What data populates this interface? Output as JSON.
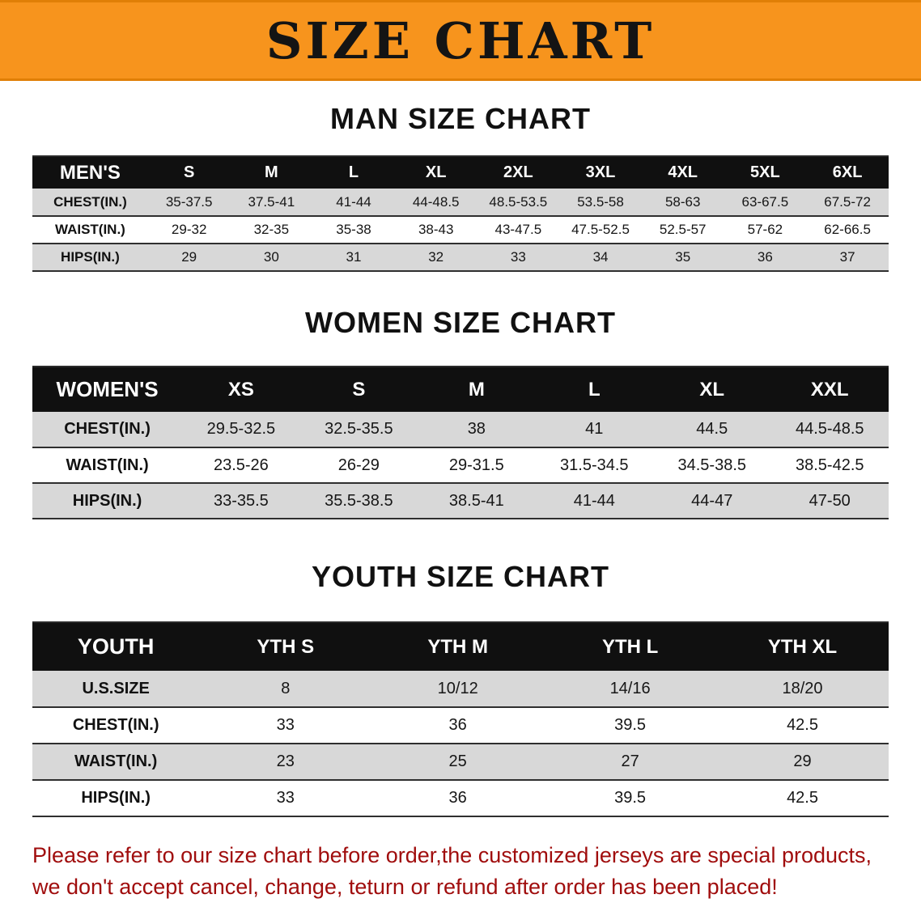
{
  "banner": {
    "title": "SIZE CHART"
  },
  "colors": {
    "accent_orange": "#f7941d",
    "header_black": "#101010",
    "row_gray": "#d8d8d8",
    "footer_red": "#a00d0d"
  },
  "sections": [
    {
      "heading": "MAN SIZE CHART",
      "table": {
        "header": [
          "MEN'S",
          "S",
          "M",
          "L",
          "XL",
          "2XL",
          "3XL",
          "4XL",
          "5XL",
          "6XL"
        ],
        "rows": [
          [
            "CHEST(IN.)",
            "35-37.5",
            "37.5-41",
            "41-44",
            "44-48.5",
            "48.5-53.5",
            "53.5-58",
            "58-63",
            "63-67.5",
            "67.5-72"
          ],
          [
            "WAIST(IN.)",
            "29-32",
            "32-35",
            "35-38",
            "38-43",
            "43-47.5",
            "47.5-52.5",
            "52.5-57",
            "57-62",
            "62-66.5"
          ],
          [
            "HIPS(IN.)",
            "29",
            "30",
            "31",
            "32",
            "33",
            "34",
            "35",
            "36",
            "37"
          ]
        ]
      }
    },
    {
      "heading": "WOMEN SIZE CHART",
      "table": {
        "header": [
          "WOMEN'S",
          "XS",
          "S",
          "M",
          "L",
          "XL",
          "XXL"
        ],
        "rows": [
          [
            "CHEST(IN.)",
            "29.5-32.5",
            "32.5-35.5",
            "38",
            "41",
            "44.5",
            "44.5-48.5"
          ],
          [
            "WAIST(IN.)",
            "23.5-26",
            "26-29",
            "29-31.5",
            "31.5-34.5",
            "34.5-38.5",
            "38.5-42.5"
          ],
          [
            "HIPS(IN.)",
            "33-35.5",
            "35.5-38.5",
            "38.5-41",
            "41-44",
            "44-47",
            "47-50"
          ]
        ]
      }
    },
    {
      "heading": "YOUTH SIZE CHART",
      "table": {
        "header": [
          "YOUTH",
          "YTH S",
          "YTH M",
          "YTH L",
          "YTH XL"
        ],
        "rows": [
          [
            "U.S.SIZE",
            "8",
            "10/12",
            "14/16",
            "18/20"
          ],
          [
            "CHEST(IN.)",
            "33",
            "36",
            "39.5",
            "42.5"
          ],
          [
            "WAIST(IN.)",
            "23",
            "25",
            "27",
            "29"
          ],
          [
            "HIPS(IN.)",
            "33",
            "36",
            "39.5",
            "42.5"
          ]
        ]
      }
    }
  ],
  "footer": {
    "line1": "Please refer to our size chart before order,the customized jerseys are special products,",
    "line2": "we don't accept cancel, change, teturn or refund after order has been placed!"
  }
}
